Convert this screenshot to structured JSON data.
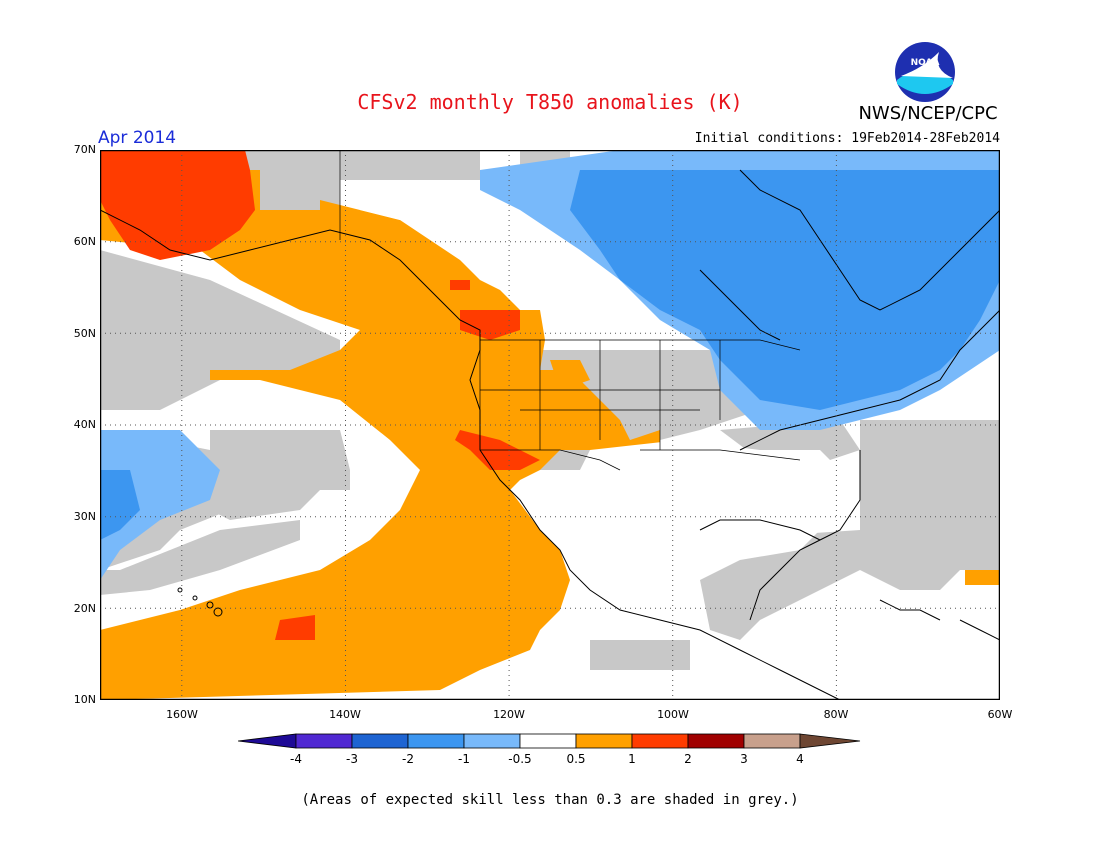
{
  "header": {
    "title": "CFSv2 monthly T850 anomalies (K)",
    "org": "NWS/NCEP/CPC",
    "logo_text": "NOAA",
    "month": "Apr 2014",
    "initial_conditions": "Initial conditions: 19Feb2014-28Feb2014"
  },
  "map": {
    "lat_labels": [
      "70N",
      "60N",
      "50N",
      "40N",
      "30N",
      "20N",
      "10N"
    ],
    "lon_labels": [
      "160W",
      "140W",
      "120W",
      "100W",
      "80W",
      "60W"
    ],
    "lat_range": [
      10,
      70
    ],
    "lon_range": [
      -170,
      -60
    ]
  },
  "colors": {
    "grey": "#c8c8c8",
    "orange": "#ffa000",
    "red_orange": "#ff3c00",
    "blue": "#3c96f0",
    "light_blue": "#78b9fa",
    "land_line": "#000000"
  },
  "legend": {
    "labels": [
      "-4",
      "-3",
      "-2",
      "-1",
      "-0.5",
      "0.5",
      "1",
      "2",
      "3",
      "4"
    ],
    "colors": [
      "#1e0a96",
      "#5028d2",
      "#1e64d2",
      "#3c96f0",
      "#78b9fa",
      "#ffffff",
      "#ffa000",
      "#ff3c00",
      "#a00000",
      "#c8a08c",
      "#6e4632"
    ]
  },
  "footer": {
    "note": "(Areas of expected skill less than 0.3 are shaded in grey.)"
  }
}
